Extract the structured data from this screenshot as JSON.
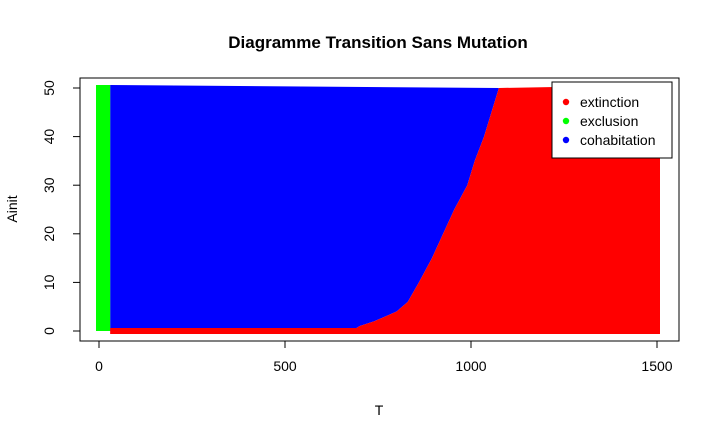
{
  "chart_data": {
    "type": "scatter",
    "title": "Diagramme Transition Sans Mutation",
    "xlabel": "T",
    "ylabel": "Ainit",
    "xlim": [
      0,
      1500
    ],
    "ylim": [
      0,
      50
    ],
    "x_ticks": [
      0,
      500,
      1000,
      1500
    ],
    "y_ticks": [
      0,
      10,
      20,
      30,
      40,
      50
    ],
    "grid": false,
    "legend_position": "top-right",
    "series": [
      {
        "name": "extinction",
        "color": "#ff0000"
      },
      {
        "name": "exclusion",
        "color": "#00ff00"
      },
      {
        "name": "cohabitation",
        "color": "#0000ff"
      }
    ],
    "regions": {
      "exclusion_T_range": [
        0,
        30
      ],
      "extinction_at_Ainit": 0,
      "extinction_at_Ainit_from_T": 30,
      "boundary": [
        {
          "Ainit": 0,
          "T": 680
        },
        {
          "Ainit": 1,
          "T": 700
        },
        {
          "Ainit": 2,
          "T": 740
        },
        {
          "Ainit": 4,
          "T": 800
        },
        {
          "Ainit": 6,
          "T": 830
        },
        {
          "Ainit": 10,
          "T": 860
        },
        {
          "Ainit": 15,
          "T": 895
        },
        {
          "Ainit": 20,
          "T": 925
        },
        {
          "Ainit": 25,
          "T": 955
        },
        {
          "Ainit": 30,
          "T": 990
        },
        {
          "Ainit": 35,
          "T": 1010
        },
        {
          "Ainit": 40,
          "T": 1035
        },
        {
          "Ainit": 45,
          "T": 1055
        },
        {
          "Ainit": 50,
          "T": 1075
        }
      ]
    }
  }
}
